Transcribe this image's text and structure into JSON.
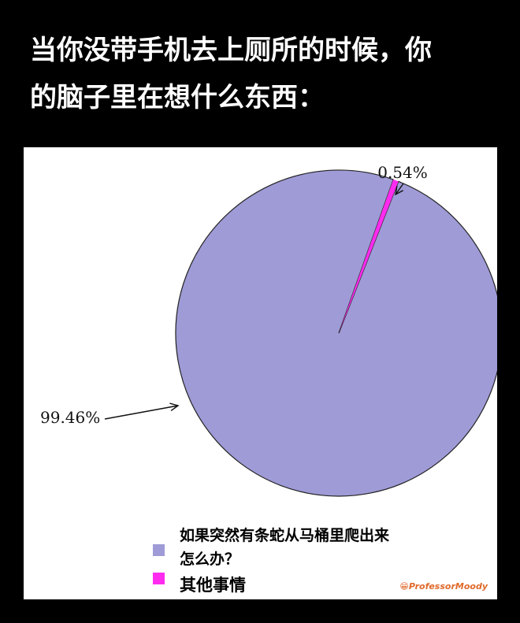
{
  "title_lines": [
    "当你没带手机去上厕所的时候，你",
    "的脑子里在想什么东西："
  ],
  "chart_data": {
    "type": "pie",
    "slices": [
      {
        "label": "如果突然有条蛇从马桶里爬出来怎么办？",
        "label_lines": [
          "如果突然有条蛇从马桶里爬出来",
          "怎么办？"
        ],
        "value": 99.46,
        "color": "#9e9bd6",
        "data_label": "99.46%"
      },
      {
        "label": "其他事情",
        "label_lines": [
          "其他事情"
        ],
        "value": 0.54,
        "color": "#ff2bef",
        "data_label": "0.54%"
      }
    ],
    "legend_position": "bottom"
  },
  "watermark": "ProfessorMoody"
}
